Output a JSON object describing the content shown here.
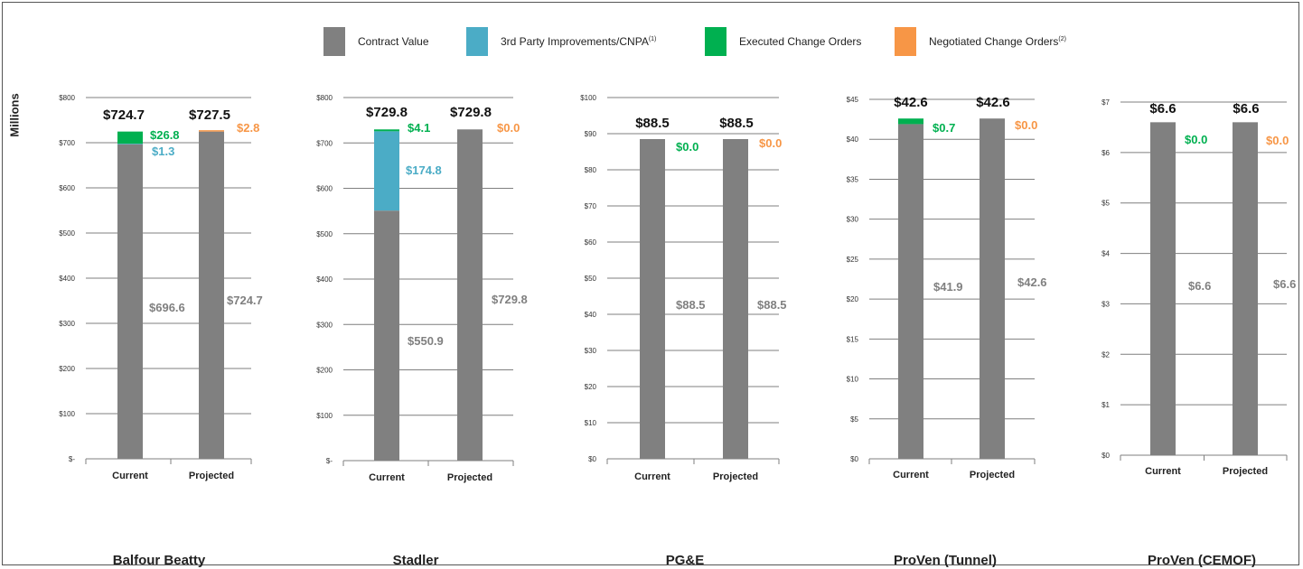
{
  "legend": {
    "items": [
      {
        "label": "Contract Value",
        "sup": "",
        "color": "#808080"
      },
      {
        "label": "3rd Party Improvements/CNPA",
        "sup": "(1)",
        "color": "#4BACC6"
      },
      {
        "label": "Executed Change Orders",
        "sup": "",
        "color": "#00B050"
      },
      {
        "label": "Negotiated Change Orders",
        "sup": "(2)",
        "color": "#F79646"
      }
    ]
  },
  "y_axis_title": "Millions",
  "colors": {
    "contract": "#808080",
    "third_party": "#4BACC6",
    "executed": "#00B050",
    "negotiated": "#F79646",
    "total_label": "#111111",
    "contract_label": "#808080"
  },
  "chart_data": [
    {
      "type": "bar",
      "title": "Balfour Beatty",
      "categories": [
        "Current",
        "Projected"
      ],
      "ylim": [
        0,
        800
      ],
      "yticks": [
        0,
        100,
        200,
        300,
        400,
        500,
        600,
        700,
        800
      ],
      "ytick_labels": [
        "$-",
        "$100",
        "$200",
        "$300",
        "$400",
        "$500",
        "$600",
        "$700",
        "$800"
      ],
      "series": [
        {
          "name": "Contract Value",
          "values": [
            696.6,
            724.7
          ]
        },
        {
          "name": "3rd Party Improvements/CNPA",
          "values": [
            1.3,
            0
          ]
        },
        {
          "name": "Executed Change Orders",
          "values": [
            26.8,
            0
          ]
        },
        {
          "name": "Negotiated Change Orders",
          "values": [
            0,
            2.8
          ]
        }
      ],
      "labels": {
        "totals": [
          "$724.7",
          "$727.5"
        ],
        "contract": [
          "$696.6",
          "$724.7"
        ],
        "third_party": "$1.3",
        "executed": "$26.8",
        "negotiated": "$2.8"
      }
    },
    {
      "type": "bar",
      "title": "Stadler",
      "categories": [
        "Current",
        "Projected"
      ],
      "ylim": [
        0,
        800
      ],
      "yticks": [
        0,
        100,
        200,
        300,
        400,
        500,
        600,
        700,
        800
      ],
      "ytick_labels": [
        "$-",
        "$100",
        "$200",
        "$300",
        "$400",
        "$500",
        "$600",
        "$700",
        "$800"
      ],
      "series": [
        {
          "name": "Contract Value",
          "values": [
            550.9,
            729.8
          ]
        },
        {
          "name": "3rd Party Improvements/CNPA",
          "values": [
            174.8,
            0
          ]
        },
        {
          "name": "Executed Change Orders",
          "values": [
            4.1,
            0
          ]
        },
        {
          "name": "Negotiated Change Orders",
          "values": [
            0,
            0.0
          ]
        }
      ],
      "labels": {
        "totals": [
          "$729.8",
          "$729.8"
        ],
        "contract": [
          "$550.9",
          "$729.8"
        ],
        "third_party": "$174.8",
        "executed": "$4.1",
        "negotiated": "$0.0"
      }
    },
    {
      "type": "bar",
      "title": "PG&E",
      "categories": [
        "Current",
        "Projected"
      ],
      "ylim": [
        0,
        100
      ],
      "yticks": [
        0,
        10,
        20,
        30,
        40,
        50,
        60,
        70,
        80,
        90,
        100
      ],
      "ytick_labels": [
        "$0",
        "$10",
        "$20",
        "$30",
        "$40",
        "$50",
        "$60",
        "$70",
        "$80",
        "$90",
        "$100"
      ],
      "series": [
        {
          "name": "Contract Value",
          "values": [
            88.5,
            88.5
          ]
        },
        {
          "name": "Executed Change Orders",
          "values": [
            0.0,
            0
          ]
        },
        {
          "name": "Negotiated Change Orders",
          "values": [
            0,
            0.0
          ]
        }
      ],
      "labels": {
        "totals": [
          "$88.5",
          "$88.5"
        ],
        "contract": [
          "$88.5",
          "$88.5"
        ],
        "third_party": "",
        "executed": "$0.0",
        "negotiated": "$0.0"
      }
    },
    {
      "type": "bar",
      "title": "ProVen (Tunnel)",
      "categories": [
        "Current",
        "Projected"
      ],
      "ylim": [
        0,
        45
      ],
      "yticks": [
        0,
        5,
        10,
        15,
        20,
        25,
        30,
        35,
        40,
        45
      ],
      "ytick_labels": [
        "$0",
        "$5",
        "$10",
        "$15",
        "$20",
        "$25",
        "$30",
        "$35",
        "$40",
        "$45"
      ],
      "series": [
        {
          "name": "Contract Value",
          "values": [
            41.9,
            42.6
          ]
        },
        {
          "name": "Executed Change Orders",
          "values": [
            0.7,
            0
          ]
        },
        {
          "name": "Negotiated Change Orders",
          "values": [
            0,
            0.0
          ]
        }
      ],
      "labels": {
        "totals": [
          "$42.6",
          "$42.6"
        ],
        "contract": [
          "$41.9",
          "$42.6"
        ],
        "third_party": "",
        "executed": "$0.7",
        "negotiated": "$0.0"
      }
    },
    {
      "type": "bar",
      "title": "ProVen (CEMOF)",
      "categories": [
        "Current",
        "Projected"
      ],
      "ylim": [
        0,
        7
      ],
      "yticks": [
        0,
        1,
        2,
        3,
        4,
        5,
        6,
        7
      ],
      "ytick_labels": [
        "$0",
        "$1",
        "$2",
        "$3",
        "$4",
        "$5",
        "$6",
        "$7"
      ],
      "series": [
        {
          "name": "Contract Value",
          "values": [
            6.6,
            6.6
          ]
        },
        {
          "name": "Executed Change Orders",
          "values": [
            0.0,
            0
          ]
        },
        {
          "name": "Negotiated Change Orders",
          "values": [
            0,
            0.0
          ]
        }
      ],
      "labels": {
        "totals": [
          "$6.6",
          "$6.6"
        ],
        "contract": [
          "$6.6",
          "$6.6"
        ],
        "third_party": "",
        "executed": "$0.0",
        "negotiated": "$0.0"
      }
    }
  ]
}
